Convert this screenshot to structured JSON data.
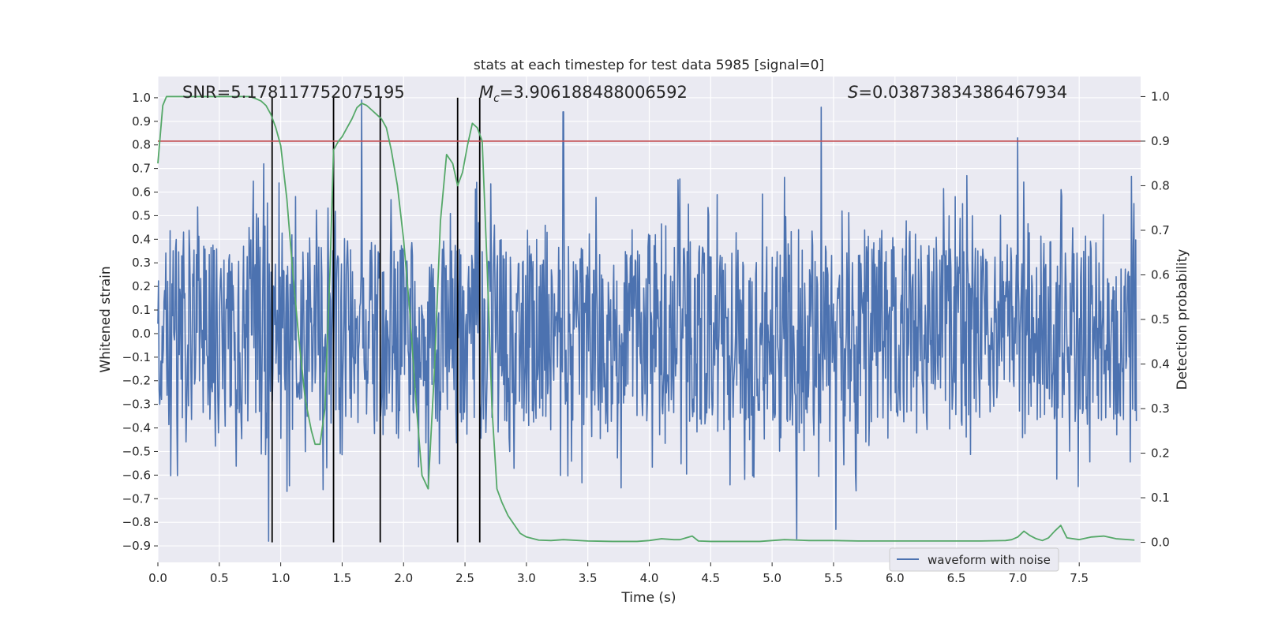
{
  "chart_data": {
    "type": "line",
    "title": "stats at each timestep for test data 5985 [signal=0]",
    "xlabel": "Time (s)",
    "ylabel": "Whitened strain",
    "y2label": "Detection probability",
    "xlim": [
      0.0,
      8.0
    ],
    "ylim": [
      -0.97,
      1.09
    ],
    "y2lim": [
      -0.045,
      1.045
    ],
    "x_ticks": [
      0.0,
      0.5,
      1.0,
      1.5,
      2.0,
      2.5,
      3.0,
      3.5,
      4.0,
      4.5,
      5.0,
      5.5,
      6.0,
      6.5,
      7.0,
      7.5
    ],
    "x_tick_labels": [
      "0.0",
      "0.5",
      "1.0",
      "1.5",
      "2.0",
      "2.5",
      "3.0",
      "3.5",
      "4.0",
      "4.5",
      "5.0",
      "5.5",
      "6.0",
      "6.5",
      "7.0",
      "7.5"
    ],
    "y_ticks": [
      1.0,
      0.9,
      0.8,
      0.7,
      0.6,
      0.5,
      0.4,
      0.3,
      0.2,
      0.1,
      0.0,
      -0.1,
      -0.2,
      -0.3,
      -0.4,
      -0.5,
      -0.6,
      -0.7,
      -0.8,
      -0.9
    ],
    "y_tick_labels": [
      "1.0",
      "0.9",
      "0.8",
      "0.7",
      "0.6",
      "0.5",
      "0.4",
      "0.3",
      "0.2",
      "0.1",
      "0.0",
      "−0.1",
      "−0.2",
      "−0.3",
      "−0.4",
      "−0.5",
      "−0.6",
      "−0.7",
      "−0.8",
      "−0.9"
    ],
    "y2_ticks": [
      1.0,
      0.9,
      0.8,
      0.7,
      0.6,
      0.5,
      0.4,
      0.3,
      0.2,
      0.1,
      0.0
    ],
    "y2_tick_labels": [
      "1.0",
      "0.9",
      "0.8",
      "0.7",
      "0.6",
      "0.5",
      "0.4",
      "0.3",
      "0.2",
      "0.1",
      "0.0"
    ],
    "annotations": {
      "snr": "SNR=5.178117752075195",
      "mc_symbol": "M",
      "mc_subscript": "c",
      "mc_value": "=3.906188488006592",
      "s_symbol": "S",
      "s_value": "=0.03873834386467934"
    },
    "legend": {
      "label": "waveform with noise",
      "position": "lower-right"
    },
    "threshold": {
      "value": 0.9,
      "axis": "right",
      "color": "#c44e52"
    },
    "vertical_lines": [
      0.93,
      1.43,
      1.81,
      2.44,
      2.62
    ],
    "colors": {
      "waveform": "#4c72b0",
      "probability": "#55a868",
      "threshold": "#c44e52",
      "vline": "#000000",
      "background": "#eaeaf2"
    },
    "waveform_seed": 5985,
    "waveform_samples": 1600,
    "probability": {
      "x": [
        0.0,
        0.04,
        0.07,
        0.2,
        0.4,
        0.6,
        0.75,
        0.8,
        0.84,
        0.88,
        0.92,
        0.96,
        1.0,
        1.05,
        1.1,
        1.15,
        1.2,
        1.25,
        1.28,
        1.32,
        1.36,
        1.4,
        1.43,
        1.47,
        1.5,
        1.54,
        1.58,
        1.62,
        1.66,
        1.7,
        1.74,
        1.78,
        1.82,
        1.86,
        1.9,
        1.95,
        2.0,
        2.05,
        2.1,
        2.15,
        2.2,
        2.25,
        2.3,
        2.35,
        2.4,
        2.44,
        2.48,
        2.52,
        2.56,
        2.6,
        2.64,
        2.68,
        2.72,
        2.76,
        2.8,
        2.85,
        2.9,
        2.95,
        3.0,
        3.1,
        3.2,
        3.3,
        3.5,
        3.7,
        3.9,
        4.0,
        4.1,
        4.2,
        4.25,
        4.3,
        4.35,
        4.4,
        4.5,
        4.7,
        4.9,
        5.1,
        5.3,
        5.5,
        5.7,
        5.9,
        6.1,
        6.3,
        6.5,
        6.7,
        6.9,
        6.95,
        7.0,
        7.05,
        7.1,
        7.15,
        7.2,
        7.25,
        7.3,
        7.35,
        7.4,
        7.5,
        7.6,
        7.7,
        7.8,
        7.95
      ],
      "y": [
        0.85,
        0.98,
        1.0,
        1.0,
        1.0,
        1.0,
        1.0,
        0.995,
        0.99,
        0.98,
        0.96,
        0.93,
        0.89,
        0.77,
        0.6,
        0.45,
        0.32,
        0.25,
        0.22,
        0.22,
        0.3,
        0.6,
        0.88,
        0.9,
        0.91,
        0.93,
        0.95,
        0.975,
        0.985,
        0.98,
        0.97,
        0.96,
        0.95,
        0.93,
        0.88,
        0.8,
        0.68,
        0.52,
        0.32,
        0.15,
        0.12,
        0.38,
        0.72,
        0.87,
        0.85,
        0.8,
        0.83,
        0.89,
        0.94,
        0.93,
        0.9,
        0.62,
        0.3,
        0.12,
        0.09,
        0.06,
        0.04,
        0.02,
        0.012,
        0.005,
        0.004,
        0.006,
        0.003,
        0.002,
        0.002,
        0.004,
        0.008,
        0.006,
        0.006,
        0.01,
        0.014,
        0.003,
        0.002,
        0.002,
        0.002,
        0.006,
        0.004,
        0.004,
        0.003,
        0.003,
        0.003,
        0.003,
        0.003,
        0.003,
        0.004,
        0.006,
        0.012,
        0.025,
        0.015,
        0.008,
        0.004,
        0.01,
        0.025,
        0.038,
        0.01,
        0.006,
        0.012,
        0.014,
        0.008,
        0.005
      ]
    }
  }
}
